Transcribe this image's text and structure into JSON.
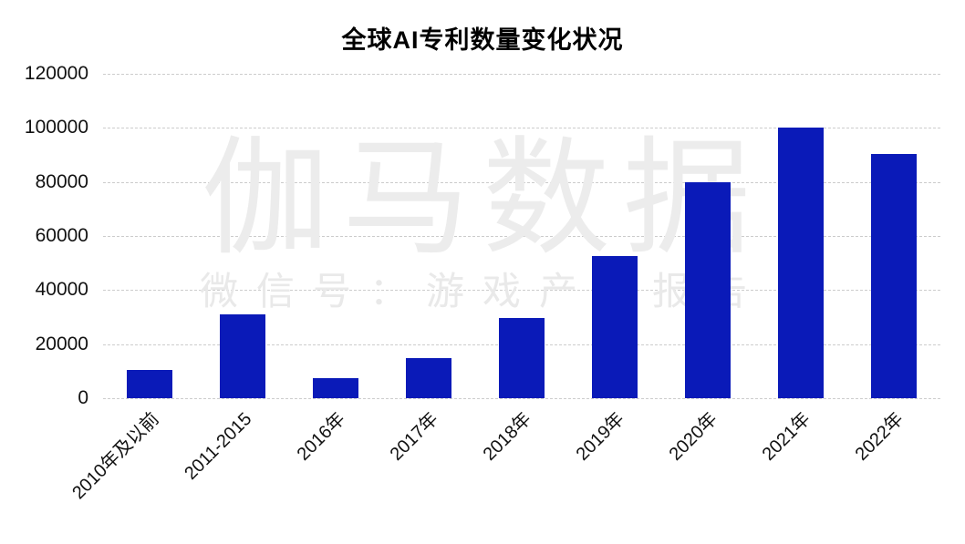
{
  "chart_data": {
    "type": "bar",
    "title": "全球AI专利数量变化状况",
    "categories": [
      "2010年及以前",
      "2011-2015",
      "2016年",
      "2017年",
      "2018年",
      "2019年",
      "2020年",
      "2021年",
      "2022年"
    ],
    "values": [
      10500,
      31000,
      7500,
      14800,
      29500,
      52600,
      80000,
      100000,
      90500
    ],
    "xlabel": "",
    "ylabel": "",
    "ylim": [
      0,
      120000
    ],
    "y_ticks": [
      0,
      20000,
      40000,
      60000,
      80000,
      100000,
      120000
    ],
    "legend_position": "none",
    "grid": "horizontal-dashed",
    "x_label_rotation_deg": 45,
    "bar_color": "#0A1AB8"
  },
  "watermark": {
    "brand": "伽马数据",
    "wechat": "微信号：游戏产业报告",
    "color": "#ECECEC"
  },
  "colors": {
    "background": "#FFFFFF",
    "grid_line": "#CCCCCC",
    "tick_text": "#111111",
    "title_text": "#000000"
  }
}
